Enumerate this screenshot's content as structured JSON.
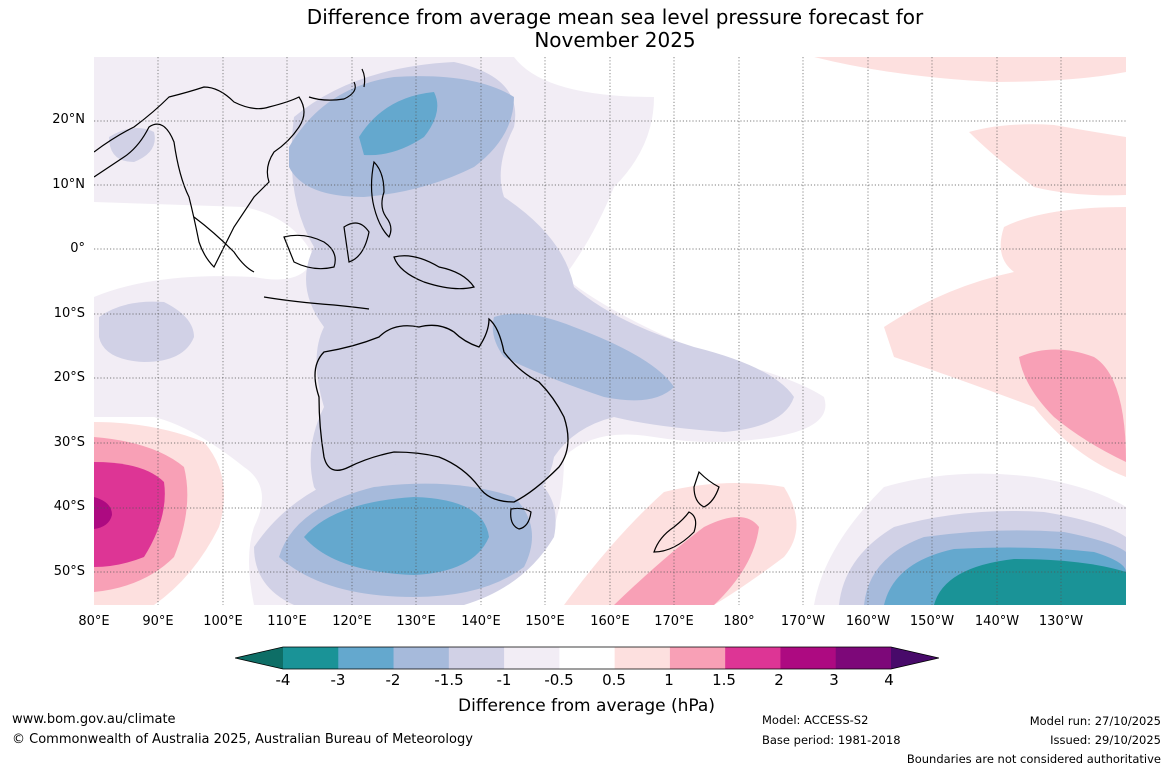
{
  "title_line1": "Difference from average mean sea level pressure forecast for",
  "title_line2": "November 2025",
  "map": {
    "lat_labels": [
      "20°N",
      "10°N",
      "0°",
      "10°S",
      "20°S",
      "30°S",
      "40°S",
      "50°S"
    ],
    "lon_labels": [
      "80°E",
      "90°E",
      "100°E",
      "110°E",
      "120°E",
      "130°E",
      "140°E",
      "150°E",
      "160°E",
      "170°E",
      "180°",
      "170°W",
      "160°W",
      "150°W",
      "140°W",
      "130°W"
    ]
  },
  "colorbar": {
    "colors": [
      "#0e6e66",
      "#1a9397",
      "#64a8ce",
      "#a6badb",
      "#d1d1e6",
      "#f2edf5",
      "#ffffff",
      "#fde0df",
      "#f8a0b6",
      "#dd3595",
      "#ad0a81",
      "#7d0879",
      "#480a6a"
    ],
    "ticks": [
      "-4",
      "-3",
      "-2",
      "-1.5",
      "-1",
      "-0.5",
      "0.5",
      "1",
      "1.5",
      "2",
      "3",
      "4"
    ],
    "label": "Difference from average (hPa)"
  },
  "footer": {
    "url": "www.bom.gov.au/climate",
    "copyright": "© Commonwealth of Australia 2025, Australian Bureau of Meteorology",
    "model": "Model: ACCESS-S2",
    "base_period": "Base period: 1981-2018",
    "model_run": "Model run: 27/10/2025",
    "issued": "Issued: 29/10/2025",
    "disclaimer": "Boundaries are not considered authoritative"
  }
}
